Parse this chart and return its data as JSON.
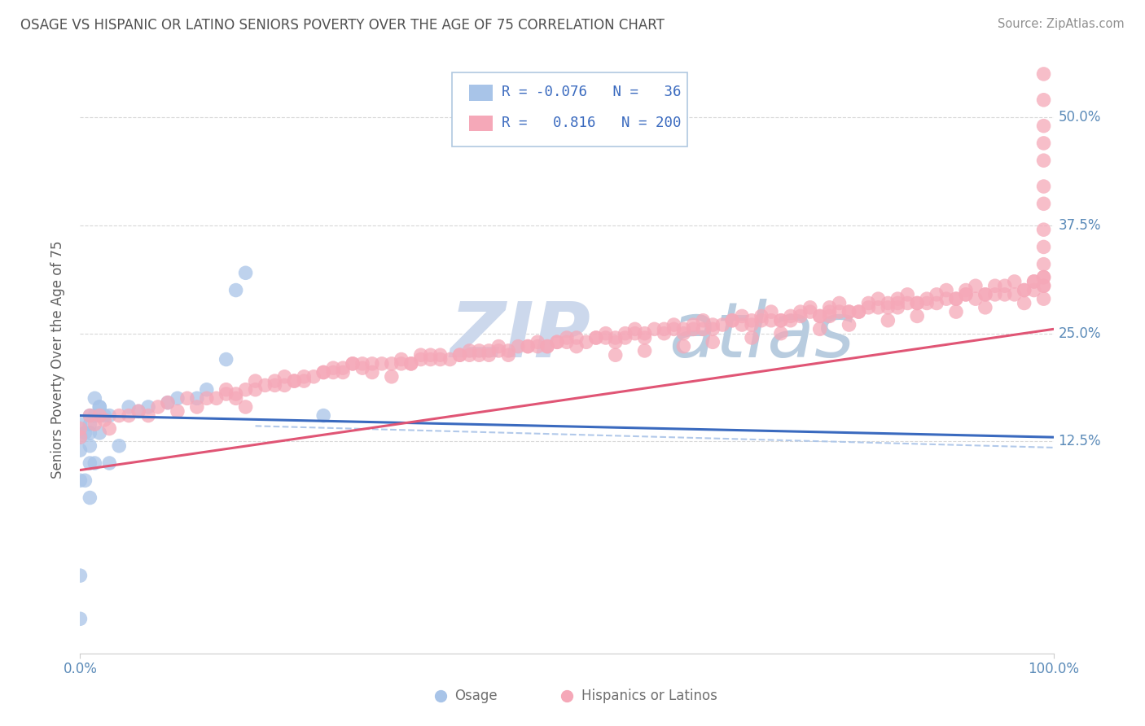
{
  "title": "OSAGE VS HISPANIC OR LATINO SENIORS POVERTY OVER THE AGE OF 75 CORRELATION CHART",
  "source": "Source: ZipAtlas.com",
  "ylabel": "Seniors Poverty Over the Age of 75",
  "xmin": 0.0,
  "xmax": 1.0,
  "ymin": -0.12,
  "ymax": 0.56,
  "yticks": [
    0.125,
    0.25,
    0.375,
    0.5
  ],
  "ytick_labels": [
    "12.5%",
    "25.0%",
    "37.5%",
    "50.0%"
  ],
  "xtick_labels": [
    "0.0%",
    "100.0%"
  ],
  "blue_color": "#a8c4e8",
  "pink_color": "#f5a8b8",
  "blue_line_color": "#3a6abf",
  "pink_line_color": "#e05575",
  "blue_dash_color": "#aac4e8",
  "watermark_zip_color": "#d0dff0",
  "watermark_atlas_color": "#c0d8f0",
  "background_color": "#ffffff",
  "grid_color": "#d8d8d8",
  "title_color": "#505050",
  "axis_label_color": "#606060",
  "tick_label_color": "#5a8ab8",
  "source_color": "#909090",
  "legend_text_color": "#3a6abf",
  "legend_border_color": "#b0c8e0",
  "osage_x": [
    0.0,
    0.0,
    0.0,
    0.0,
    0.0,
    0.0,
    0.01,
    0.01,
    0.01,
    0.01,
    0.01,
    0.015,
    0.015,
    0.02,
    0.02,
    0.02,
    0.025,
    0.03,
    0.03,
    0.04,
    0.05,
    0.06,
    0.07,
    0.09,
    0.1,
    0.12,
    0.13,
    0.15,
    0.16,
    0.17,
    0.005,
    0.005,
    0.01,
    0.015,
    0.02,
    0.25
  ],
  "osage_y": [
    0.145,
    0.13,
    0.115,
    0.08,
    -0.03,
    -0.08,
    0.155,
    0.145,
    0.135,
    0.1,
    0.06,
    0.155,
    0.1,
    0.165,
    0.155,
    0.135,
    0.155,
    0.155,
    0.1,
    0.12,
    0.165,
    0.16,
    0.165,
    0.17,
    0.175,
    0.175,
    0.185,
    0.22,
    0.3,
    0.32,
    0.135,
    0.08,
    0.12,
    0.175,
    0.165,
    0.155
  ],
  "hispanic_x": [
    0.0,
    0.0,
    0.01,
    0.015,
    0.02,
    0.025,
    0.03,
    0.04,
    0.05,
    0.06,
    0.07,
    0.08,
    0.09,
    0.1,
    0.11,
    0.12,
    0.13,
    0.14,
    0.15,
    0.16,
    0.17,
    0.18,
    0.19,
    0.2,
    0.21,
    0.22,
    0.23,
    0.24,
    0.25,
    0.26,
    0.27,
    0.28,
    0.29,
    0.3,
    0.31,
    0.32,
    0.33,
    0.34,
    0.35,
    0.36,
    0.37,
    0.38,
    0.39,
    0.4,
    0.41,
    0.42,
    0.43,
    0.44,
    0.45,
    0.46,
    0.47,
    0.48,
    0.49,
    0.5,
    0.51,
    0.52,
    0.53,
    0.54,
    0.55,
    0.56,
    0.57,
    0.58,
    0.59,
    0.6,
    0.61,
    0.62,
    0.63,
    0.64,
    0.65,
    0.66,
    0.67,
    0.68,
    0.69,
    0.7,
    0.71,
    0.72,
    0.73,
    0.74,
    0.75,
    0.76,
    0.77,
    0.78,
    0.79,
    0.8,
    0.81,
    0.82,
    0.83,
    0.84,
    0.85,
    0.86,
    0.87,
    0.88,
    0.89,
    0.9,
    0.91,
    0.92,
    0.93,
    0.94,
    0.95,
    0.96,
    0.97,
    0.98,
    0.99,
    0.15,
    0.18,
    0.21,
    0.25,
    0.28,
    0.32,
    0.35,
    0.39,
    0.42,
    0.46,
    0.49,
    0.53,
    0.56,
    0.6,
    0.63,
    0.67,
    0.7,
    0.74,
    0.77,
    0.81,
    0.84,
    0.88,
    0.91,
    0.95,
    0.98,
    0.16,
    0.2,
    0.23,
    0.27,
    0.3,
    0.34,
    0.37,
    0.41,
    0.44,
    0.48,
    0.51,
    0.55,
    0.58,
    0.62,
    0.65,
    0.69,
    0.72,
    0.76,
    0.79,
    0.83,
    0.86,
    0.9,
    0.93,
    0.97,
    0.99,
    0.22,
    0.26,
    0.29,
    0.33,
    0.36,
    0.4,
    0.43,
    0.47,
    0.5,
    0.54,
    0.57,
    0.61,
    0.64,
    0.68,
    0.71,
    0.75,
    0.78,
    0.82,
    0.85,
    0.89,
    0.92,
    0.96,
    0.99,
    0.17,
    0.55,
    0.58,
    0.62,
    0.65,
    0.69,
    0.72,
    0.76,
    0.79,
    0.83,
    0.86,
    0.9,
    0.93,
    0.97,
    0.99,
    0.73,
    0.77,
    0.8,
    0.84,
    0.87,
    0.91,
    0.94,
    0.98,
    0.99,
    0.99,
    0.99,
    0.99,
    0.99,
    0.99,
    0.99,
    0.99,
    0.99,
    0.99,
    0.99
  ],
  "hispanic_y": [
    0.14,
    0.13,
    0.155,
    0.145,
    0.155,
    0.15,
    0.14,
    0.155,
    0.155,
    0.16,
    0.155,
    0.165,
    0.17,
    0.16,
    0.175,
    0.165,
    0.175,
    0.175,
    0.18,
    0.175,
    0.185,
    0.185,
    0.19,
    0.195,
    0.19,
    0.195,
    0.2,
    0.2,
    0.205,
    0.205,
    0.21,
    0.215,
    0.21,
    0.215,
    0.215,
    0.2,
    0.215,
    0.215,
    0.22,
    0.22,
    0.225,
    0.22,
    0.225,
    0.225,
    0.23,
    0.225,
    0.23,
    0.23,
    0.235,
    0.235,
    0.235,
    0.235,
    0.24,
    0.24,
    0.245,
    0.24,
    0.245,
    0.245,
    0.245,
    0.245,
    0.25,
    0.25,
    0.255,
    0.25,
    0.255,
    0.255,
    0.255,
    0.255,
    0.26,
    0.26,
    0.265,
    0.26,
    0.265,
    0.265,
    0.265,
    0.265,
    0.27,
    0.27,
    0.275,
    0.27,
    0.275,
    0.275,
    0.275,
    0.275,
    0.28,
    0.28,
    0.285,
    0.28,
    0.285,
    0.285,
    0.285,
    0.285,
    0.29,
    0.29,
    0.295,
    0.29,
    0.295,
    0.295,
    0.295,
    0.295,
    0.3,
    0.3,
    0.305,
    0.185,
    0.195,
    0.2,
    0.205,
    0.215,
    0.215,
    0.225,
    0.225,
    0.23,
    0.235,
    0.24,
    0.245,
    0.25,
    0.255,
    0.26,
    0.265,
    0.27,
    0.275,
    0.28,
    0.285,
    0.29,
    0.295,
    0.3,
    0.305,
    0.31,
    0.18,
    0.19,
    0.195,
    0.205,
    0.205,
    0.215,
    0.22,
    0.225,
    0.225,
    0.235,
    0.235,
    0.24,
    0.245,
    0.25,
    0.255,
    0.26,
    0.265,
    0.27,
    0.275,
    0.28,
    0.285,
    0.29,
    0.295,
    0.3,
    0.305,
    0.195,
    0.21,
    0.215,
    0.22,
    0.225,
    0.23,
    0.235,
    0.24,
    0.245,
    0.25,
    0.255,
    0.26,
    0.265,
    0.27,
    0.275,
    0.28,
    0.285,
    0.29,
    0.295,
    0.3,
    0.305,
    0.31,
    0.315,
    0.165,
    0.225,
    0.23,
    0.235,
    0.24,
    0.245,
    0.25,
    0.255,
    0.26,
    0.265,
    0.27,
    0.275,
    0.28,
    0.285,
    0.29,
    0.265,
    0.27,
    0.275,
    0.285,
    0.29,
    0.295,
    0.305,
    0.31,
    0.315,
    0.33,
    0.35,
    0.37,
    0.4,
    0.42,
    0.45,
    0.47,
    0.49,
    0.52,
    0.55
  ]
}
